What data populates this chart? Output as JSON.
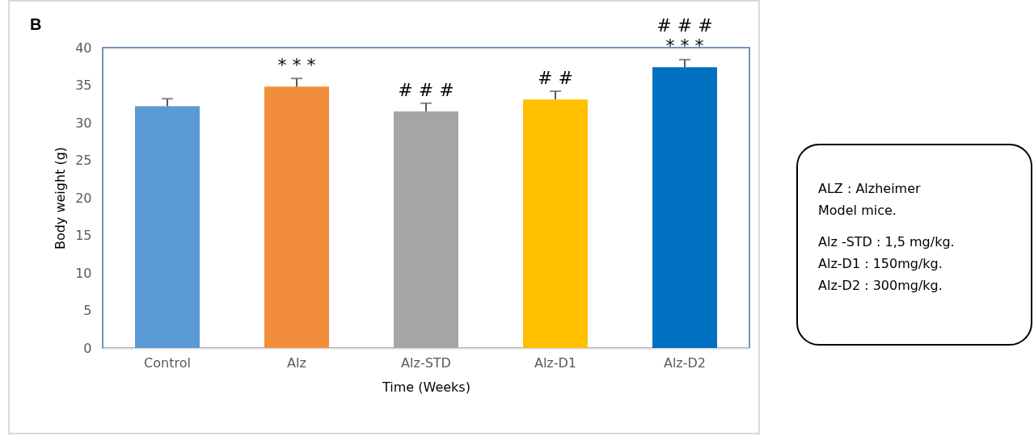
{
  "chart_data": {
    "type": "bar",
    "title": "B",
    "xlabel": "Time (Weeks)",
    "ylabel": "Body weight (g)",
    "categories": [
      "Control",
      "Alz",
      "Alz-STD",
      "Alz-D1",
      "Alz-D2"
    ],
    "values": [
      32.2,
      34.8,
      31.5,
      33.1,
      37.4
    ],
    "errors": [
      1.0,
      1.1,
      1.1,
      1.1,
      1.0
    ],
    "colors": [
      "#5b9bd5",
      "#f28e3b",
      "#a5a5a5",
      "#ffc000",
      "#0070c0"
    ],
    "ylim": [
      0,
      40
    ],
    "yticks": [
      0,
      5,
      10,
      15,
      20,
      25,
      30,
      35,
      40
    ],
    "grid": false,
    "annotations": [
      {
        "text": "* * *",
        "x": "Alz",
        "y": 34.8
      },
      {
        "text": "# # #",
        "x": "Alz-STD",
        "y": 31.5
      },
      {
        "text": "# #",
        "x": "Alz-D1",
        "y": 33.1
      },
      {
        "text": "* * *",
        "x": "Alz-D2",
        "y": 37.4
      },
      {
        "text": "# # #",
        "x": "Alz-D2",
        "y": 37.4
      },
      "ALZ : Alzheimer\nModel mice.",
      "Alz -STD : 1,5 mg/kg.\nAlz-D1 : 150mg/kg.\nAlz-D2 : 300mg/kg."
    ]
  }
}
